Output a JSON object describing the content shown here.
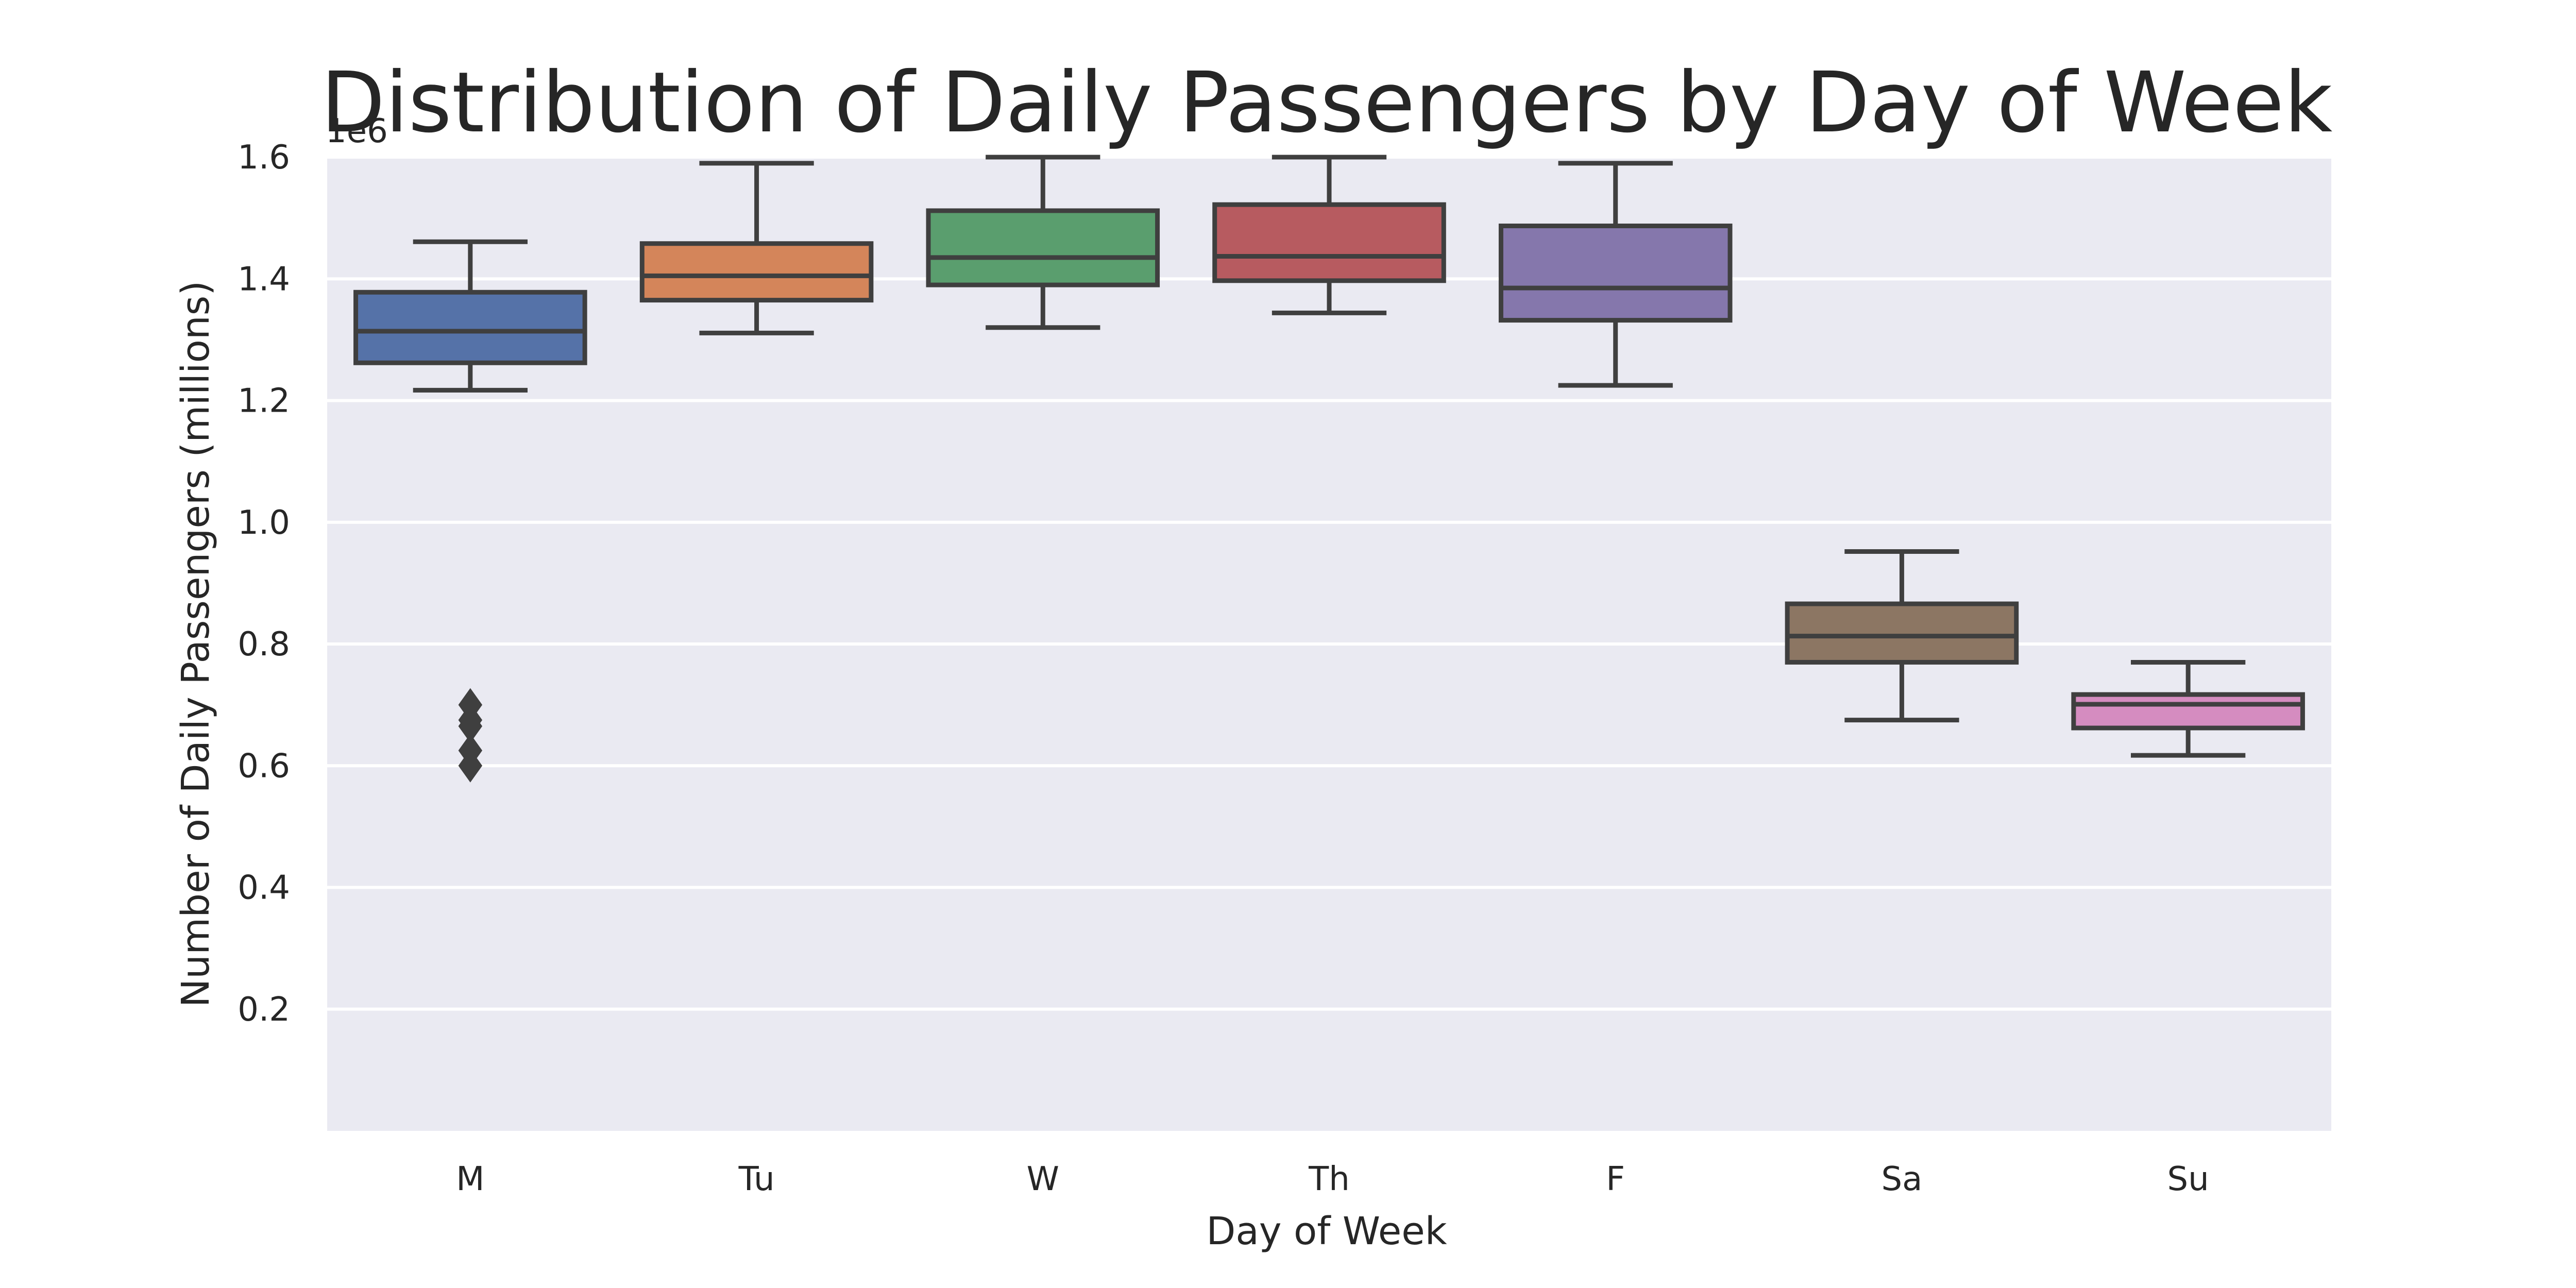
{
  "chart_data": {
    "type": "box",
    "title": "Distribution of Daily Passengers by Day of Week",
    "xlabel": "Day of Week",
    "ylabel": "Number of Daily Passengers (millions)",
    "offset_text": "1e6",
    "ylim": [
      0,
      1600000
    ],
    "yticks": [
      200000,
      400000,
      600000,
      800000,
      1000000,
      1200000,
      1400000,
      1600000
    ],
    "ytick_labels": [
      "0.2",
      "0.4",
      "0.6",
      "0.8",
      "1.0",
      "1.2",
      "1.4",
      "1.6"
    ],
    "grid": true,
    "background": "#eaeaf2",
    "edge_color": "#3f3f3f",
    "categories": [
      "M",
      "Tu",
      "W",
      "Th",
      "F",
      "Sa",
      "Su"
    ],
    "boxes": [
      {
        "category": "M",
        "whisker_low": 1217000,
        "q1": 1262000,
        "median": 1314000,
        "q3": 1378000,
        "whisker_high": 1461000,
        "outliers": [
          600000,
          625000,
          665000,
          675000,
          700000
        ],
        "color": "#5572a8"
      },
      {
        "category": "Tu",
        "whisker_low": 1311000,
        "q1": 1365000,
        "median": 1405000,
        "q3": 1458000,
        "whisker_high": 1590000,
        "outliers": [],
        "color": "#d4855a"
      },
      {
        "category": "W",
        "whisker_low": 1320000,
        "q1": 1390000,
        "median": 1435000,
        "q3": 1512000,
        "whisker_high": 1600000,
        "outliers": [],
        "color": "#5a9e6e"
      },
      {
        "category": "Th",
        "whisker_low": 1344000,
        "q1": 1397000,
        "median": 1437000,
        "q3": 1522000,
        "whisker_high": 1600000,
        "outliers": [],
        "color": "#b75b60"
      },
      {
        "category": "F",
        "whisker_low": 1225000,
        "q1": 1332000,
        "median": 1385000,
        "q3": 1487000,
        "whisker_high": 1590000,
        "outliers": [],
        "color": "#8577ac"
      },
      {
        "category": "Sa",
        "whisker_low": 675000,
        "q1": 770000,
        "median": 813000,
        "q3": 866000,
        "whisker_high": 952000,
        "outliers": [],
        "color": "#8c7663"
      },
      {
        "category": "Su",
        "whisker_low": 617000,
        "q1": 662000,
        "median": 701000,
        "q3": 717000,
        "whisker_high": 770000,
        "outliers": [],
        "color": "#d58cc0"
      }
    ]
  }
}
